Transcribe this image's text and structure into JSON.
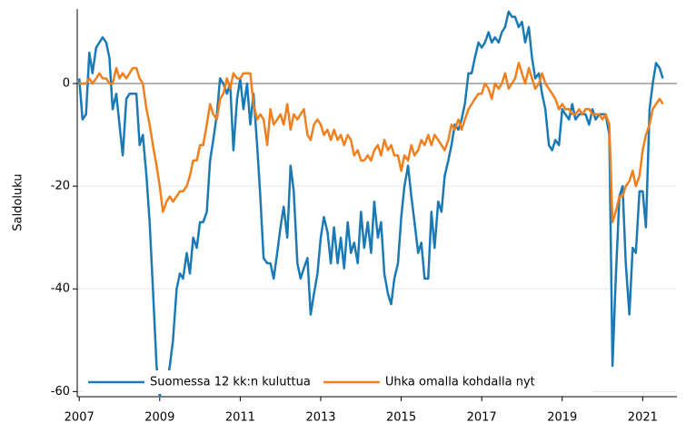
{
  "chart_data": {
    "type": "line",
    "y_label": "Saldoluku",
    "x": [
      2007,
      2007.08,
      2007.17,
      2007.25,
      2007.33,
      2007.42,
      2007.5,
      2007.58,
      2007.67,
      2007.75,
      2007.83,
      2007.92,
      2008,
      2008.08,
      2008.17,
      2008.25,
      2008.33,
      2008.42,
      2008.5,
      2008.58,
      2008.67,
      2008.75,
      2008.83,
      2008.92,
      2009,
      2009.08,
      2009.17,
      2009.25,
      2009.33,
      2009.42,
      2009.5,
      2009.58,
      2009.67,
      2009.75,
      2009.83,
      2009.92,
      2010,
      2010.08,
      2010.17,
      2010.25,
      2010.33,
      2010.42,
      2010.5,
      2010.58,
      2010.67,
      2010.75,
      2010.83,
      2010.92,
      2011,
      2011.08,
      2011.17,
      2011.25,
      2011.33,
      2011.42,
      2011.5,
      2011.58,
      2011.67,
      2011.75,
      2011.83,
      2011.92,
      2012,
      2012.08,
      2012.17,
      2012.25,
      2012.33,
      2012.42,
      2012.5,
      2012.58,
      2012.67,
      2012.75,
      2012.83,
      2012.92,
      2013,
      2013.08,
      2013.17,
      2013.25,
      2013.33,
      2013.42,
      2013.5,
      2013.58,
      2013.67,
      2013.75,
      2013.83,
      2013.92,
      2014,
      2014.08,
      2014.17,
      2014.25,
      2014.33,
      2014.42,
      2014.5,
      2014.58,
      2014.67,
      2014.75,
      2014.83,
      2014.92,
      2015,
      2015.08,
      2015.17,
      2015.25,
      2015.33,
      2015.42,
      2015.5,
      2015.58,
      2015.67,
      2015.75,
      2015.83,
      2015.92,
      2016,
      2016.08,
      2016.17,
      2016.25,
      2016.33,
      2016.42,
      2016.5,
      2016.58,
      2016.67,
      2016.75,
      2016.83,
      2016.92,
      2017,
      2017.08,
      2017.17,
      2017.25,
      2017.33,
      2017.42,
      2017.5,
      2017.58,
      2017.67,
      2017.75,
      2017.83,
      2017.92,
      2018,
      2018.08,
      2018.17,
      2018.25,
      2018.33,
      2018.42,
      2018.5,
      2018.58,
      2018.67,
      2018.75,
      2018.83,
      2018.92,
      2019,
      2019.08,
      2019.17,
      2019.25,
      2019.33,
      2019.42,
      2019.5,
      2019.58,
      2019.67,
      2019.75,
      2019.83,
      2019.92,
      2020,
      2020.08,
      2020.17,
      2020.25,
      2020.33,
      2020.42,
      2020.5,
      2020.58,
      2020.67,
      2020.75,
      2020.83,
      2020.92,
      2021,
      2021.08,
      2021.17,
      2021.25,
      2021.33,
      2021.42,
      2021.5
    ],
    "series": [
      {
        "name": "Suomessa 12 kk:n kuluttua",
        "color": "#1a7ab5",
        "values": [
          1,
          -7,
          -6,
          6,
          2,
          7,
          8,
          9,
          8,
          5,
          -5,
          -2,
          -8,
          -14,
          -3,
          -2,
          -2,
          -2,
          -12,
          -10,
          -18,
          -27,
          -40,
          -55,
          -61,
          -57,
          -59,
          -55,
          -50,
          -40,
          -37,
          -38,
          -33,
          -37,
          -30,
          -32,
          -27,
          -27,
          -25,
          -15,
          -11,
          -6,
          1,
          0,
          -2,
          0,
          -13,
          -3,
          1,
          -5,
          0,
          -8,
          -2,
          -12,
          -22,
          -34,
          -35,
          -35,
          -38,
          -33,
          -28,
          -24,
          -30,
          -16,
          -21,
          -35,
          -38,
          -36,
          -34,
          -45,
          -41,
          -37,
          -30,
          -26,
          -29,
          -35,
          -28,
          -35,
          -30,
          -36,
          -27,
          -33,
          -31,
          -35,
          -25,
          -32,
          -27,
          -33,
          -23,
          -30,
          -27,
          -37,
          -41,
          -43,
          -38,
          -35,
          -26,
          -20,
          -16,
          -22,
          -27,
          -33,
          -31,
          -38,
          -38,
          -25,
          -32,
          -23,
          -25,
          -18,
          -15,
          -12,
          -8,
          -9,
          -7,
          -4,
          2,
          2,
          5,
          8,
          7,
          8,
          10,
          8,
          9,
          8,
          10,
          11,
          14,
          13,
          13,
          11,
          12,
          8,
          11,
          5,
          1,
          2,
          -2,
          -5,
          -12,
          -13,
          -11,
          -12,
          -5,
          -6,
          -7,
          -4,
          -7,
          -6,
          -6,
          -6,
          -8,
          -5,
          -7,
          -6,
          -6,
          -6,
          -10,
          -55,
          -38,
          -22,
          -20,
          -35,
          -45,
          -32,
          -33,
          -21,
          -21,
          -28,
          -5,
          0,
          4,
          3,
          1
        ]
      },
      {
        "name": "Uhka omalla kohdalla nyt",
        "color": "#f07f1e",
        "values": [
          0,
          0,
          0,
          1,
          0,
          1,
          2,
          1,
          1,
          0,
          0,
          3,
          1,
          2,
          1,
          2,
          3,
          3,
          1,
          0,
          -5,
          -8,
          -12,
          -16,
          -20,
          -25,
          -23,
          -22,
          -23,
          -22,
          -21,
          -21,
          -20,
          -18,
          -15,
          -15,
          -12,
          -12,
          -8,
          -4,
          -6,
          -7,
          -3,
          -2,
          1,
          -1,
          2,
          1,
          1,
          2,
          2,
          2,
          -4,
          -7,
          -6,
          -7,
          -12,
          -5,
          -8,
          -7,
          -6,
          -8,
          -4,
          -9,
          -6,
          -7,
          -6,
          -5,
          -10,
          -11,
          -8,
          -7,
          -8,
          -10,
          -9,
          -11,
          -9,
          -11,
          -10,
          -12,
          -10,
          -11,
          -14,
          -13,
          -15,
          -15,
          -14,
          -15,
          -13,
          -12,
          -14,
          -11,
          -13,
          -12,
          -14,
          -14,
          -17,
          -14,
          -15,
          -12,
          -14,
          -13,
          -11,
          -12,
          -10,
          -12,
          -10,
          -11,
          -12,
          -13,
          -11,
          -8,
          -9,
          -7,
          -9,
          -7,
          -5,
          -4,
          -3,
          -2,
          -2,
          0,
          -1,
          -3,
          0,
          -1,
          0,
          2,
          -1,
          0,
          1,
          4,
          2,
          0,
          3,
          1,
          -1,
          0,
          2,
          0,
          -1,
          -2,
          -3,
          -5,
          -4,
          -5,
          -5,
          -6,
          -6,
          -5,
          -6,
          -5,
          -5,
          -6,
          -6,
          -6,
          -7,
          -6,
          -8,
          -27,
          -25,
          -22,
          -22,
          -20,
          -19,
          -17,
          -20,
          -18,
          -13,
          -10,
          -8,
          -5,
          -4,
          -3,
          -4
        ]
      }
    ],
    "xlim": [
      2006.95,
      2021.85
    ],
    "xticks": [
      2007,
      2009,
      2011,
      2013,
      2015,
      2017,
      2019,
      2021
    ],
    "ylim": [
      -61,
      14.5
    ],
    "yticks": [
      -60,
      -40,
      -20,
      0
    ],
    "grid": true,
    "legend": "lower left"
  }
}
